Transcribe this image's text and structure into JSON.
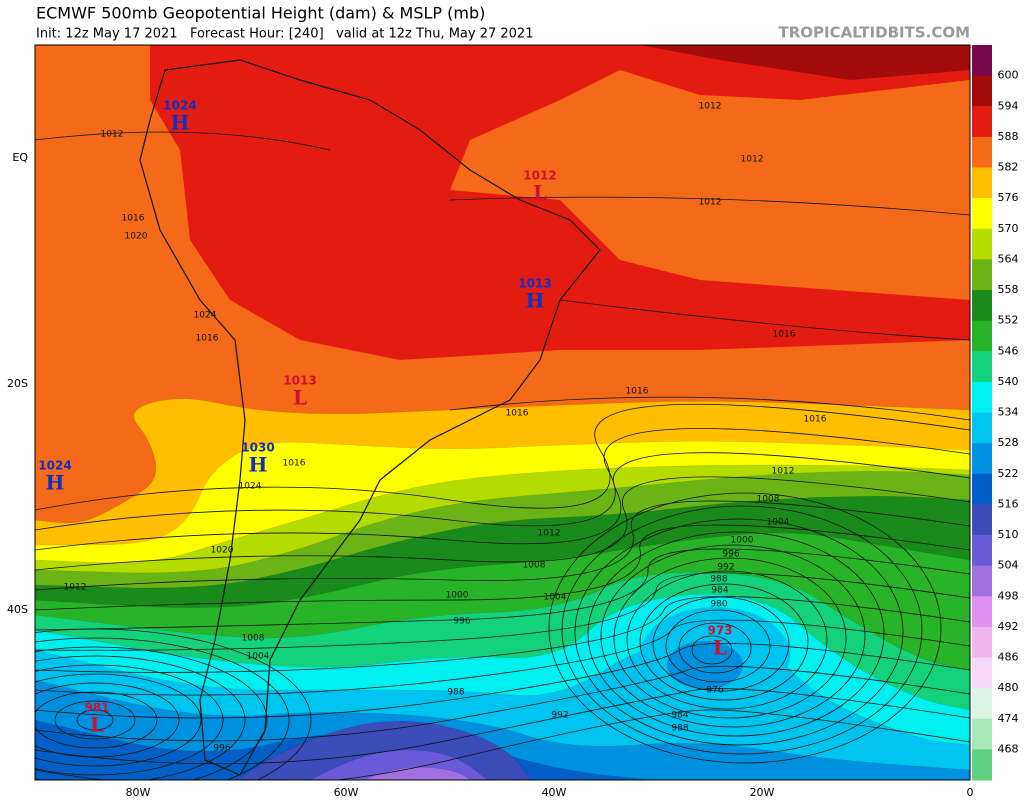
{
  "header": {
    "title": "ECMWF 500mb Geopotential Height (dam) & MSLP (mb)",
    "subtitle": "Init: 12z May 17 2021   Forecast Hour: [240]   valid at 12z Thu, May 27 2021",
    "watermark": "TROPICALTIDBITS.COM"
  },
  "colorbar": {
    "labels": [
      "600",
      "594",
      "588",
      "582",
      "576",
      "570",
      "564",
      "558",
      "552",
      "546",
      "540",
      "534",
      "528",
      "522",
      "516",
      "510",
      "504",
      "498",
      "492",
      "486",
      "480",
      "474",
      "468"
    ]
  },
  "axes": {
    "x": [
      "80W",
      "60W",
      "40W",
      "20W",
      "0"
    ],
    "y": [
      "EQ",
      "20S",
      "40S"
    ]
  },
  "centers": [
    {
      "type": "H",
      "pressure": "1024"
    },
    {
      "type": "L",
      "pressure": "1012"
    },
    {
      "type": "H",
      "pressure": "1013"
    },
    {
      "type": "L",
      "pressure": "1013"
    },
    {
      "type": "H",
      "pressure": "1030"
    },
    {
      "type": "H",
      "pressure": "1024"
    },
    {
      "type": "L",
      "pressure": "973"
    },
    {
      "type": "L",
      "pressure": "981"
    }
  ],
  "isobar_labels": [
    "1012",
    "1012",
    "1012",
    "1012",
    "1016",
    "1016",
    "1016",
    "1016",
    "1016",
    "1012",
    "1008",
    "1004",
    "1012",
    "1008",
    "1004",
    "1000",
    "996",
    "1000",
    "996",
    "992",
    "988",
    "984",
    "980",
    "976",
    "984",
    "988",
    "992",
    "988",
    "1012",
    "1020",
    "1024",
    "1024",
    "1016",
    "1016",
    "1020",
    "1008",
    "1004",
    "996"
  ]
}
